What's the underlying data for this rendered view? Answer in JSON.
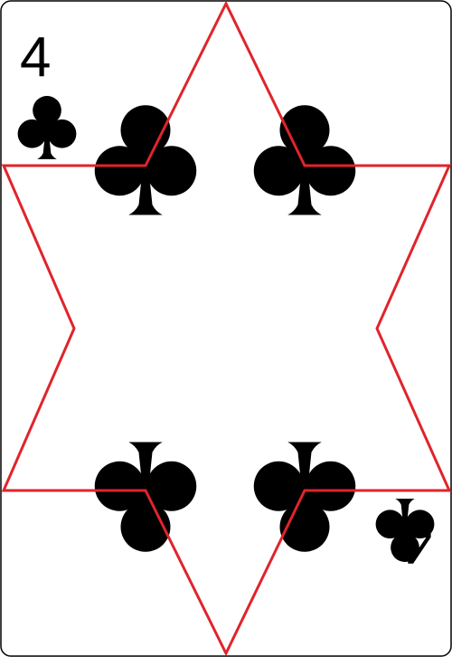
{
  "card": {
    "rank": "4",
    "suit": "clubs",
    "suit_icon": "club-icon",
    "pip_count": 4,
    "colors": {
      "background": "#ffffff",
      "border": "#000000",
      "suit": "#000000",
      "rank": "#000000",
      "star_outline": "#e0242b"
    }
  }
}
